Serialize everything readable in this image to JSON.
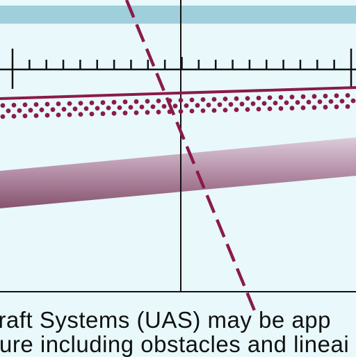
{
  "caption": {
    "line1": "rcraft Systems (UAS) may be app",
    "line2": "ure including obstacles and lineai"
  },
  "colors": {
    "background": "#e8f8fb",
    "top_band": "#9fcfda",
    "maroon": "#8b1a4a",
    "dark_line": "#111111",
    "band_light": "#d9c8d8",
    "band_dark": "#8d5c76"
  }
}
